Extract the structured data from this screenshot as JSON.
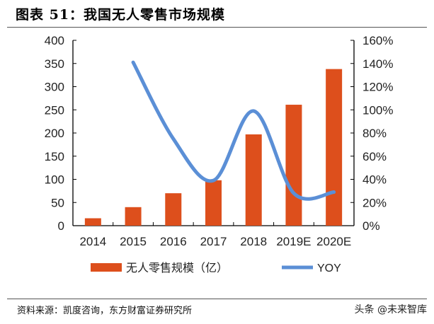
{
  "title": "图表 51：我国无人零售市场规模",
  "source": "资料来源：凯度咨询，东方财富证券研究所",
  "watermark": "头条 @未来智库",
  "chart_data": {
    "type": "bar+line",
    "categories": [
      "2014",
      "2015",
      "2016",
      "2017",
      "2018",
      "2019E",
      "2020E"
    ],
    "series": [
      {
        "name": "无人零售规模（亿）",
        "type": "bar",
        "axis": "left",
        "color": "#DD4F1C",
        "values": [
          16,
          40,
          70,
          98,
          197,
          261,
          338
        ]
      },
      {
        "name": "YOY",
        "type": "line",
        "axis": "right",
        "color": "#5B8FD6",
        "smooth": true,
        "values": [
          null,
          141,
          75,
          39,
          99,
          28,
          29
        ]
      }
    ],
    "y_left": {
      "lim": [
        0,
        400
      ],
      "ticks": [
        "0",
        "50",
        "100",
        "150",
        "200",
        "250",
        "300",
        "350",
        "400"
      ]
    },
    "y_right": {
      "lim": [
        0,
        160
      ],
      "ticks": [
        "0%",
        "20%",
        "40%",
        "60%",
        "80%",
        "100%",
        "120%",
        "140%",
        "160%"
      ]
    },
    "grid": false,
    "legend_position": "bottom"
  }
}
